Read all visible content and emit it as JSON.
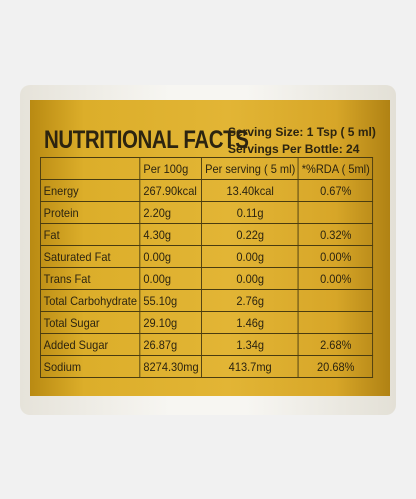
{
  "label": {
    "title": "NUTRITIONAL FACTS",
    "serving_size": "Serving Size: 1 Tsp ( 5 ml)",
    "servings_per_bottle": "Servings Per Bottle: 24",
    "table": {
      "header": [
        "Per 100g",
        "Per serving ( 5 ml)",
        "*%RDA ( 5ml)"
      ],
      "rows": [
        {
          "name": "Energy",
          "per100g": "267.90kcal",
          "perServing": "13.40kcal",
          "rda": "0.67%"
        },
        {
          "name": "Protein",
          "per100g": "2.20g",
          "perServing": "0.11g"
        },
        {
          "name": "Fat",
          "per100g": "4.30g",
          "perServing": "0.22g",
          "rda": "0.32%"
        },
        {
          "name": "Saturated Fat",
          "per100g": "0.00g",
          "perServing": "0.00g",
          "rda": "0.00%"
        },
        {
          "name": "Trans Fat",
          "per100g": "0.00g",
          "perServing": "0.00g",
          "rda": "0.00%"
        },
        {
          "name": "Total Carbohydrate",
          "per100g": "55.10g",
          "perServing": "2.76g"
        },
        {
          "name": "Total Sugar",
          "per100g": "29.10g",
          "perServing": "1.46g"
        },
        {
          "name": "Added Sugar",
          "per100g": "26.87g",
          "perServing": "1.34g",
          "rda": "2.68%"
        },
        {
          "name": "Sodium",
          "per100g": "8274.30mg",
          "perServing": "413.7mg",
          "rda": "20.68%"
        }
      ]
    }
  }
}
